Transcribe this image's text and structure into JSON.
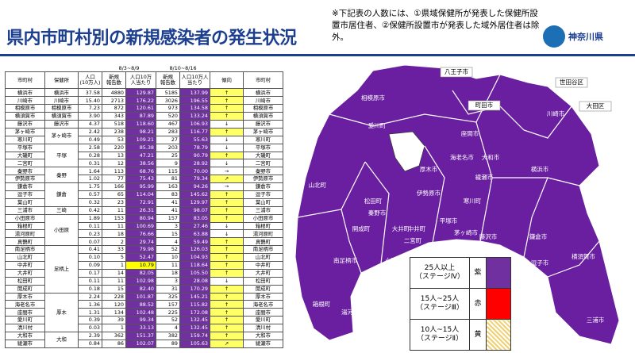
{
  "header": {
    "title": "県内市町村別の新規感染者の発生状況",
    "note": "※下記表の人数には、①県域保健所が発表した保健所設置市居住者、②保健所設置市が発表した域外居住者は除外。",
    "org": "神奈川県"
  },
  "table": {
    "periods": [
      "8/3~8/9",
      "8/10~8/16"
    ],
    "columns": [
      "市町村",
      "保健所",
      "人口\n(10万人)",
      "新規\n報告数",
      "人口10万\n人当たり",
      "新規\n報告数",
      "人口10万人\n当たり",
      "傾向",
      "市町村"
    ],
    "rows": [
      [
        "横浜市",
        "横浜市",
        "37.58",
        "4880",
        "129.87",
        "5185",
        "137.99",
        "↑",
        "横浜市"
      ],
      [
        "川崎市",
        "川崎市",
        "15.40",
        "2713",
        "176.22",
        "3026",
        "196.55",
        "↑",
        "川崎市"
      ],
      [
        "相模原市",
        "相模原市",
        "7.23",
        "872",
        "120.61",
        "973",
        "134.58",
        "↑",
        "相模原市"
      ],
      [
        "横須賀市",
        "横須賀市",
        "3.90",
        "343",
        "87.89",
        "520",
        "133.24",
        "↑",
        "横須賀市"
      ],
      [
        "藤沢市",
        "藤沢市",
        "4.37",
        "518",
        "118.60",
        "467",
        "106.93",
        "↓",
        "藤沢市"
      ],
      [
        "茅ヶ崎市",
        "茅ヶ崎市",
        "2.42",
        "238",
        "98.21",
        "283",
        "116.77",
        "↑",
        "茅ヶ崎市"
      ],
      [
        "寒川町",
        null,
        "0.49",
        "53",
        "109.21",
        "27",
        "55.63",
        "↓",
        "寒川町"
      ],
      [
        "平塚市",
        "平塚",
        "2.58",
        "220",
        "85.38",
        "203",
        "78.79",
        "↓",
        "平塚市"
      ],
      [
        "大磯町",
        null,
        "0.28",
        "13",
        "47.21",
        "25",
        "90.79",
        "↑",
        "大磯町"
      ],
      [
        "二宮町",
        null,
        "0.31",
        "12",
        "38.56",
        "9",
        "28.92",
        "↓",
        "二宮町"
      ],
      [
        "秦野市",
        "秦野",
        "1.64",
        "113",
        "68.76",
        "115",
        "70.00",
        "→",
        "秦野市"
      ],
      [
        "伊勢原市",
        null,
        "1.02",
        "77",
        "75.43",
        "81",
        "79.34",
        "↗",
        "伊勢原市"
      ],
      [
        "鎌倉市",
        "鎌倉",
        "1.75",
        "166",
        "95.99",
        "163",
        "94.26",
        "→",
        "鎌倉市"
      ],
      [
        "逗子市",
        null,
        "0.57",
        "65",
        "114.04",
        "83",
        "145.62",
        "↑",
        "逗子市"
      ],
      [
        "葉山町",
        null,
        "0.32",
        "23",
        "72.91",
        "41",
        "129.97",
        "↑",
        "葉山町"
      ],
      [
        "三浦市",
        "三崎",
        "0.42",
        "11",
        "26.31",
        "41",
        "98.07",
        "↑",
        "三浦市"
      ],
      [
        "小田原市",
        "小田原",
        "1.89",
        "153",
        "80.94",
        "157",
        "83.05",
        "↑",
        "小田原市"
      ],
      [
        "箱根町",
        null,
        "0.11",
        "11",
        "100.69",
        "3",
        "27.46",
        "↓",
        "箱根町"
      ],
      [
        "湯河原町",
        null,
        "0.23",
        "18",
        "76.66",
        "15",
        "63.88",
        "↓",
        "湯河原町"
      ],
      [
        "真鶴町",
        null,
        "0.07",
        "2",
        "29.74",
        "4",
        "59.49",
        "↑",
        "真鶴町"
      ],
      [
        "南足柄市",
        "足柄上",
        "0.41",
        "33",
        "79.98",
        "52",
        "126.03",
        "↑",
        "南足柄市"
      ],
      [
        "山北町",
        null,
        "0.10",
        "5",
        "52.47",
        "10",
        "104.93",
        "↑",
        "山北町"
      ],
      [
        "中井町",
        null,
        "0.09",
        "1",
        "10.79",
        "11",
        "118.64",
        "↑",
        "中井町"
      ],
      [
        "大井町",
        null,
        "0.17",
        "14",
        "82.05",
        "18",
        "105.50",
        "↑",
        "大井町"
      ],
      [
        "松田町",
        null,
        "0.11",
        "11",
        "102.98",
        "3",
        "28.08",
        "↓",
        "松田町"
      ],
      [
        "開成町",
        null,
        "0.18",
        "15",
        "82.40",
        "31",
        "170.29",
        "↑",
        "開成町"
      ],
      [
        "厚木市",
        "厚木",
        "2.24",
        "228",
        "101.87",
        "325",
        "145.21",
        "↑",
        "厚木市"
      ],
      [
        "海老名市",
        null,
        "1.36",
        "120",
        "88.52",
        "157",
        "115.82",
        "↑",
        "海老名市"
      ],
      [
        "座間市",
        null,
        "1.31",
        "134",
        "102.48",
        "225",
        "172.08",
        "↑",
        "座間市"
      ],
      [
        "愛川町",
        null,
        "0.39",
        "39",
        "99.34",
        "52",
        "132.45",
        "↑",
        "愛川町"
      ],
      [
        "清川村",
        null,
        "0.03",
        "1",
        "33.13",
        "4",
        "132.45",
        "↑",
        "清川村"
      ],
      [
        "大和市",
        "大和",
        "2.39",
        "362",
        "151.37",
        "382",
        "159.74",
        "↑",
        "大和市"
      ],
      [
        "綾瀬市",
        null,
        "0.84",
        "86",
        "102.07",
        "89",
        "105.63",
        "↗",
        "綾瀬市"
      ]
    ]
  },
  "map": {
    "outside": [
      "八王子市",
      "町田市",
      "世田谷区",
      "大田区"
    ],
    "labels": [
      "相模原市",
      "川崎市",
      "愛川町",
      "清川村",
      "厚木市",
      "海老名市",
      "座間市",
      "大和市",
      "綾瀬市",
      "横浜市",
      "山北町",
      "松田町",
      "秦野市",
      "伊勢原市",
      "開成町",
      "大井町",
      "中井町",
      "平塚市",
      "寒川町",
      "茅ヶ崎市",
      "藤沢市",
      "鎌倉市",
      "逗子市",
      "葉山町",
      "南足柄市",
      "二宮町",
      "大磯町",
      "小田原市",
      "箱根町",
      "湯河原町",
      "真鶴町",
      "横須賀市",
      "三浦市"
    ]
  },
  "legend": [
    {
      "label": "25人以上\n（ステージⅣ）",
      "color": "紫"
    },
    {
      "label": "15人~25人\n（ステージⅢ）",
      "color": "赤"
    },
    {
      "label": "10人~15人\n（ステージⅡ）",
      "color": "黄"
    }
  ]
}
